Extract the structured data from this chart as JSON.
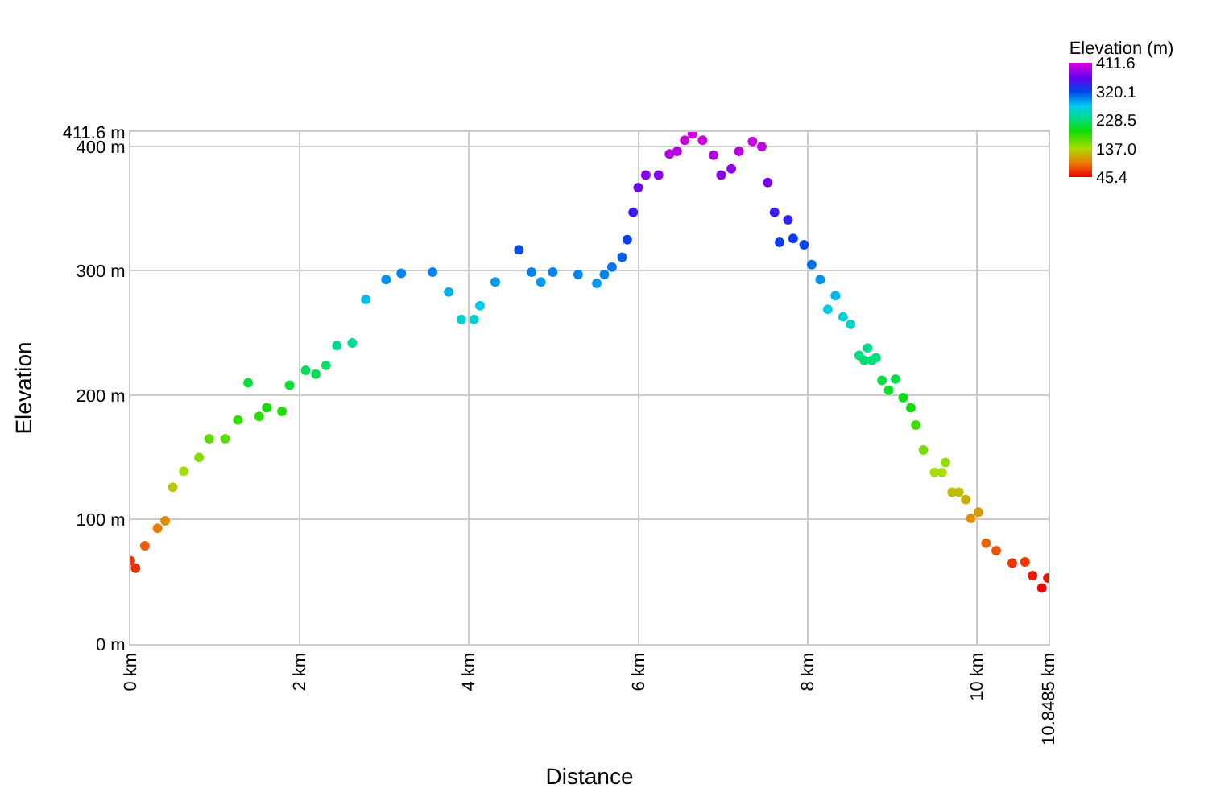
{
  "chart_data": {
    "type": "scatter",
    "xlabel": "Distance",
    "ylabel": "Elevation",
    "clabel": "Elevation (m)",
    "x": [
      0,
      0.06,
      0.17,
      0.32,
      0.41,
      0.5,
      0.63,
      0.81,
      0.93,
      1.12,
      1.27,
      1.39,
      1.52,
      1.61,
      1.79,
      1.88,
      2.07,
      2.19,
      2.31,
      2.44,
      2.62,
      2.78,
      3.02,
      3.2,
      3.57,
      3.76,
      3.91,
      4.06,
      4.13,
      4.31,
      4.59,
      4.74,
      4.85,
      4.99,
      5.29,
      5.51,
      5.6,
      5.69,
      5.81,
      5.87,
      5.94,
      6.0,
      6.09,
      6.24,
      6.37,
      6.46,
      6.55,
      6.64,
      6.76,
      6.89,
      6.98,
      7.1,
      7.19,
      7.35,
      7.46,
      7.53,
      7.61,
      7.67,
      7.77,
      7.83,
      7.96,
      8.05,
      8.15,
      8.24,
      8.33,
      8.42,
      8.51,
      8.61,
      8.67,
      8.71,
      8.76,
      8.81,
      8.88,
      8.96,
      9.04,
      9.13,
      9.22,
      9.28,
      9.37,
      9.5,
      9.59,
      9.63,
      9.71,
      9.79,
      9.87,
      9.93,
      10.02,
      10.11,
      10.23,
      10.42,
      10.57,
      10.66,
      10.77,
      10.84
    ],
    "values": [
      67,
      61,
      79,
      93,
      99,
      126,
      139,
      150,
      165,
      165,
      180,
      210,
      183,
      190,
      187,
      208,
      220,
      217,
      224,
      240,
      242,
      277,
      293,
      298,
      299,
      283,
      261,
      261,
      272,
      291,
      317,
      299,
      291,
      299,
      297,
      290,
      297,
      303,
      311,
      325,
      347,
      367,
      377,
      377,
      394,
      396,
      405,
      410,
      405,
      393,
      377,
      382,
      396,
      404,
      400,
      371,
      347,
      323,
      341,
      326,
      321,
      305,
      293,
      269,
      280,
      263,
      257,
      232,
      228,
      238,
      228,
      230,
      212,
      204,
      213,
      198,
      190,
      176,
      156,
      138,
      138,
      146,
      122,
      122,
      116,
      101,
      106,
      81,
      75,
      65,
      66,
      55,
      45,
      53
    ],
    "cvalues": [
      67,
      61,
      79,
      93,
      99,
      126,
      139,
      150,
      165,
      165,
      180,
      210,
      183,
      190,
      187,
      208,
      220,
      217,
      224,
      240,
      242,
      277,
      293,
      298,
      299,
      283,
      261,
      261,
      272,
      291,
      317,
      299,
      291,
      299,
      297,
      290,
      297,
      303,
      311,
      325,
      347,
      367,
      377,
      377,
      394,
      396,
      405,
      410,
      405,
      393,
      377,
      382,
      396,
      404,
      400,
      371,
      347,
      323,
      341,
      326,
      321,
      305,
      293,
      269,
      280,
      263,
      257,
      232,
      228,
      238,
      228,
      230,
      212,
      204,
      213,
      198,
      190,
      176,
      156,
      138,
      138,
      146,
      122,
      122,
      116,
      101,
      106,
      81,
      75,
      65,
      66,
      55,
      45,
      53
    ],
    "clim": [
      45.4,
      411.6
    ],
    "cticks": [
      {
        "value": 411.6,
        "label": "411.6"
      },
      {
        "value": 320.1,
        "label": "320.1"
      },
      {
        "value": 228.5,
        "label": "228.5"
      },
      {
        "value": 137.0,
        "label": "137.0"
      },
      {
        "value": 45.4,
        "label": "45.4"
      }
    ],
    "xlim": [
      0,
      10.8485
    ],
    "xticks": [
      {
        "value": 0,
        "label": "0 km"
      },
      {
        "value": 2,
        "label": "2 km"
      },
      {
        "value": 4,
        "label": "4 km"
      },
      {
        "value": 6,
        "label": "6 km"
      },
      {
        "value": 8,
        "label": "8 km"
      },
      {
        "value": 10,
        "label": "10 km"
      },
      {
        "value": 10.8485,
        "label": "10.8485 km"
      }
    ],
    "ylim": [
      0,
      411.6
    ],
    "yticks": [
      {
        "value": 0,
        "label": "0 m"
      },
      {
        "value": 100,
        "label": "100 m"
      },
      {
        "value": 200,
        "label": "200 m"
      },
      {
        "value": 300,
        "label": "300 m"
      },
      {
        "value": 400,
        "label": "400 m"
      },
      {
        "value": 411.6,
        "label": "411.6 m"
      }
    ],
    "grid": true
  }
}
